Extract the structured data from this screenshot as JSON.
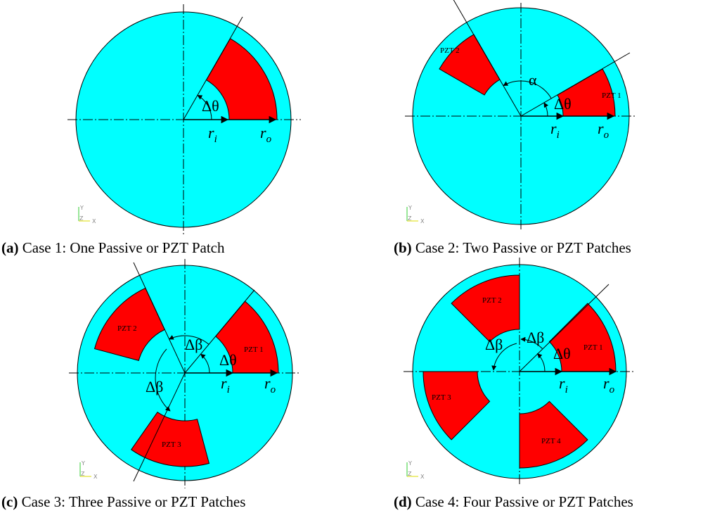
{
  "colors": {
    "disk": "#00ffff",
    "patch": "#ff0000",
    "line": "#000000",
    "triad_green": "#33cc33",
    "triad_yellow": "#dddd00"
  },
  "panels": [
    {
      "key": "a",
      "caption_prefix": "(a)",
      "caption_text": " Case 1: One Passive or PZT Patch",
      "patch_labels": [],
      "symbols": {
        "theta": "Δθ",
        "r_i_base": "r",
        "r_i_sub": "i",
        "r_o_base": "r",
        "r_o_sub": "o"
      }
    },
    {
      "key": "b",
      "caption_prefix": "(b)",
      "caption_text": " Case 2: Two Passive or PZT Patches",
      "patch_labels": [
        "PZT 1",
        "PZT 2"
      ],
      "symbols": {
        "theta": "Δθ",
        "alpha": "α",
        "r_i_base": "r",
        "r_i_sub": "i",
        "r_o_base": "r",
        "r_o_sub": "o"
      }
    },
    {
      "key": "c",
      "caption_prefix": "(c)",
      "caption_text": " Case 3: Three Passive or PZT Patches",
      "patch_labels": [
        "PZT 1",
        "PZT 2",
        "PZT 3"
      ],
      "symbols": {
        "theta": "Δθ",
        "beta": "Δβ",
        "r_i_base": "r",
        "r_i_sub": "i",
        "r_o_base": "r",
        "r_o_sub": "o"
      }
    },
    {
      "key": "d",
      "caption_prefix": "(d)",
      "caption_text": " Case 4: Four Passive or PZT Patches",
      "patch_labels": [
        "PZT 1",
        "PZT 2",
        "PZT 3",
        "PZT 4"
      ],
      "symbols": {
        "theta": "Δθ",
        "beta": "Δβ",
        "r_i_base": "r",
        "r_i_sub": "i",
        "r_o_base": "r",
        "r_o_sub": "o"
      }
    }
  ],
  "triad": {
    "y": "Y",
    "x": "X",
    "z": "Z"
  }
}
